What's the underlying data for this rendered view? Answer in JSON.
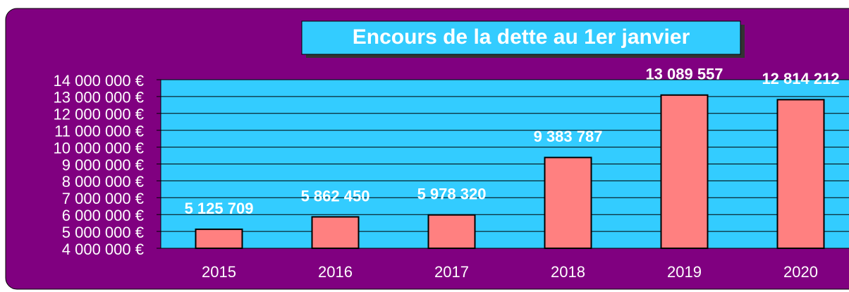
{
  "chart_data": {
    "type": "bar",
    "title": "Encours de la dette au 1er janvier",
    "categories": [
      "2015",
      "2016",
      "2017",
      "2018",
      "2019",
      "2020"
    ],
    "values": [
      5125709,
      5862450,
      5978320,
      9383787,
      13089557,
      12814212
    ],
    "value_labels": [
      "5 125 709",
      "5 862 450",
      "5 978 320",
      "9 383 787",
      "13 089 557",
      "12 814 212"
    ],
    "color": "#ff8080",
    "ylim": [
      4000000,
      14000000
    ],
    "yticks": [
      {
        "value": 4000000,
        "label": "4 000 000 €"
      },
      {
        "value": 5000000,
        "label": "5 000 000 €"
      },
      {
        "value": 6000000,
        "label": "6 000 000 €"
      },
      {
        "value": 7000000,
        "label": "7 000 000 €"
      },
      {
        "value": 8000000,
        "label": "8 000 000 €"
      },
      {
        "value": 9000000,
        "label": "9 000 000 €"
      },
      {
        "value": 10000000,
        "label": "10 000 000 €"
      },
      {
        "value": 11000000,
        "label": "11 000 000 €"
      },
      {
        "value": 12000000,
        "label": "12 000 000 €"
      },
      {
        "value": 13000000,
        "label": "13 000 000 €"
      },
      {
        "value": 14000000,
        "label": "14 000 000 €"
      }
    ],
    "grid": true
  }
}
